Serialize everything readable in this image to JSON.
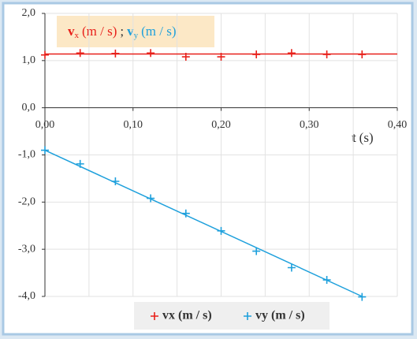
{
  "chart_data": {
    "type": "scatter",
    "annotation": [
      "v",
      "x",
      "(m / s)",
      ";",
      "v",
      "y",
      "(m / s)"
    ],
    "x_label": [
      "t",
      "(s)"
    ],
    "xlim": [
      0,
      0.4
    ],
    "ylim": [
      -4,
      2
    ],
    "xticks": [
      {
        "value": 0,
        "label": "0,00"
      },
      {
        "value": 0.1,
        "label": "0,10"
      },
      {
        "value": 0.2,
        "label": "0,20"
      },
      {
        "value": 0.3,
        "label": "0,30"
      },
      {
        "value": 0.4,
        "label": "0,40"
      }
    ],
    "x_minor_ticks": [
      0.05,
      0.15,
      0.25,
      0.35
    ],
    "yticks": [
      {
        "value": 2,
        "label": "2,0"
      },
      {
        "value": 1,
        "label": "1,0"
      },
      {
        "value": 0,
        "label": "0,0"
      },
      {
        "value": -1,
        "label": "-1,0"
      },
      {
        "value": -2,
        "label": "-2,0"
      },
      {
        "value": -3,
        "label": "-3,0"
      },
      {
        "value": -4,
        "label": "-4,0"
      }
    ],
    "grid": true,
    "legend": "bottom",
    "x": [
      0,
      0.04,
      0.08,
      0.12,
      0.16,
      0.2,
      0.24,
      0.28,
      0.32,
      0.36
    ],
    "series": [
      {
        "name": "vx (m / s)",
        "color": "#e8201a",
        "values": [
          1.12,
          1.16,
          1.15,
          1.16,
          1.08,
          1.08,
          1.13,
          1.16,
          1.13,
          1.13
        ],
        "trendline": {
          "x": [
            0,
            0.4
          ],
          "values": [
            1.14,
            1.14
          ]
        }
      },
      {
        "name": "vy (m / s)",
        "color": "#1ea0dc",
        "values": [
          -0.9,
          -1.19,
          -1.56,
          -1.92,
          -2.24,
          -2.61,
          -3.04,
          -3.39,
          -3.65,
          -4.01
        ],
        "trendline": {
          "x": [
            0,
            0.36
          ],
          "values": [
            -0.9,
            -4.0
          ]
        }
      }
    ]
  }
}
